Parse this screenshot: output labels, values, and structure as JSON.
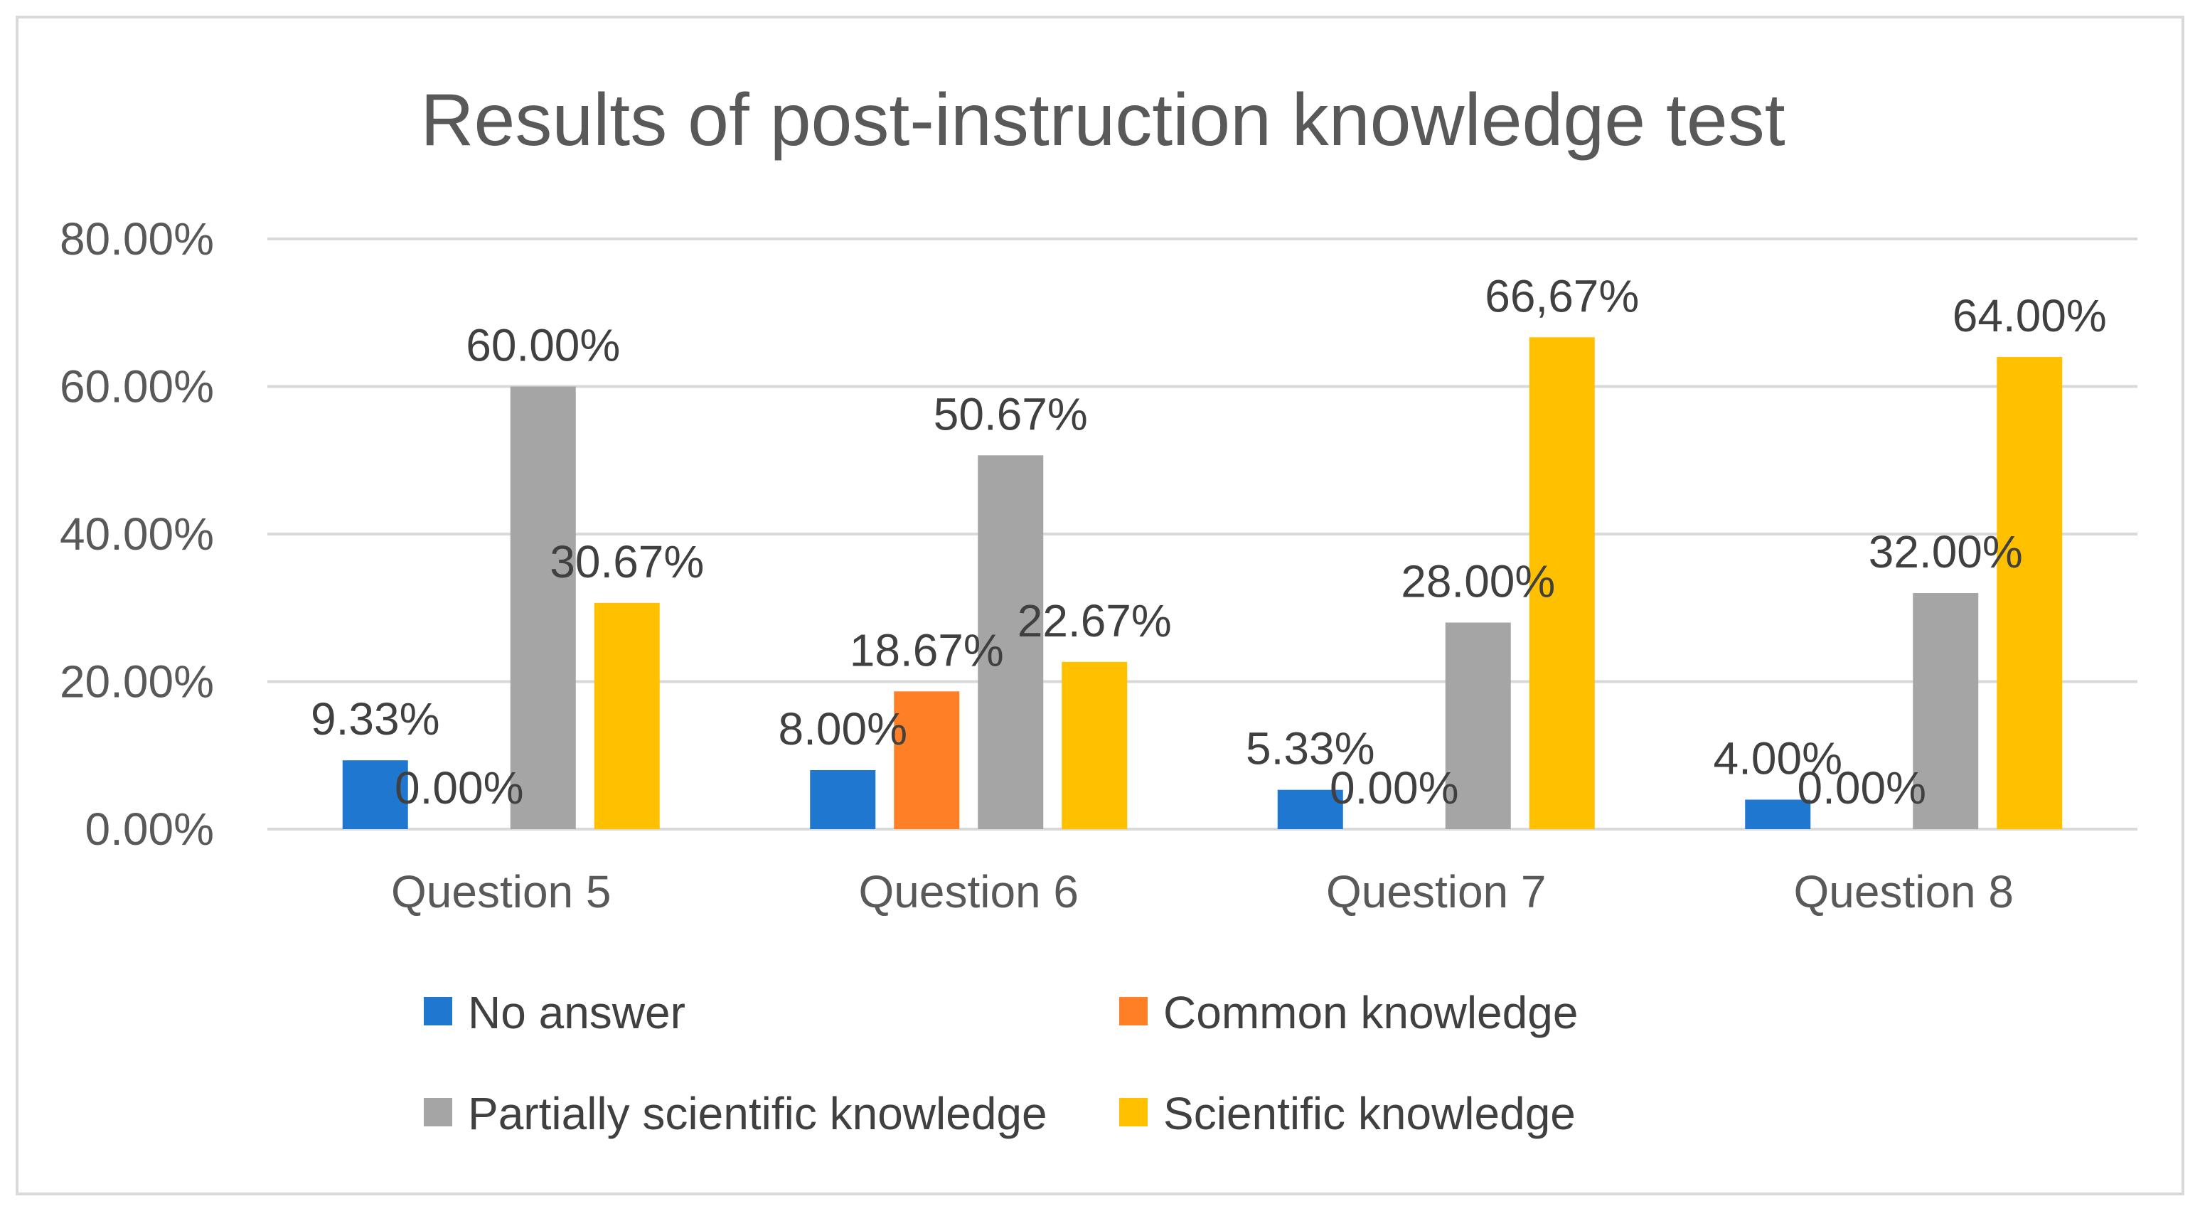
{
  "chart_data": {
    "type": "bar",
    "title": "Results of post-instruction knowledge test",
    "xlabel": "",
    "ylabel": "",
    "ylim": [
      0,
      80
    ],
    "y_ticks": [
      "0.00%",
      "20.00%",
      "40.00%",
      "60.00%",
      "80.00%"
    ],
    "categories": [
      "Question 5",
      "Question 6",
      "Question 7",
      "Question 8"
    ],
    "series": [
      {
        "name": "No answer",
        "color": "#1f77d0",
        "values": [
          9.33,
          8.0,
          5.33,
          4.0
        ],
        "labels": [
          "9.33%",
          "8.00%",
          "5.33%",
          "4.00%"
        ]
      },
      {
        "name": "Common knowledge",
        "color": "#ff7f27",
        "values": [
          0.0,
          18.67,
          0.0,
          0.0
        ],
        "labels": [
          "0.00%",
          "18.67%",
          "0.00%",
          "0.00%"
        ]
      },
      {
        "name": "Partially scientific knowledge",
        "color": "#a5a5a5",
        "values": [
          60.0,
          50.67,
          28.0,
          32.0
        ],
        "labels": [
          "60.00%",
          "50.67%",
          "28.00%",
          "32.00%"
        ]
      },
      {
        "name": "Scientific knowledge",
        "color": "#ffc000",
        "values": [
          30.67,
          22.67,
          66.67,
          64.0
        ],
        "labels": [
          "30.67%",
          "22.67%",
          "66,67%",
          "64.00%"
        ]
      }
    ],
    "grid": true,
    "legend_position": "bottom"
  }
}
